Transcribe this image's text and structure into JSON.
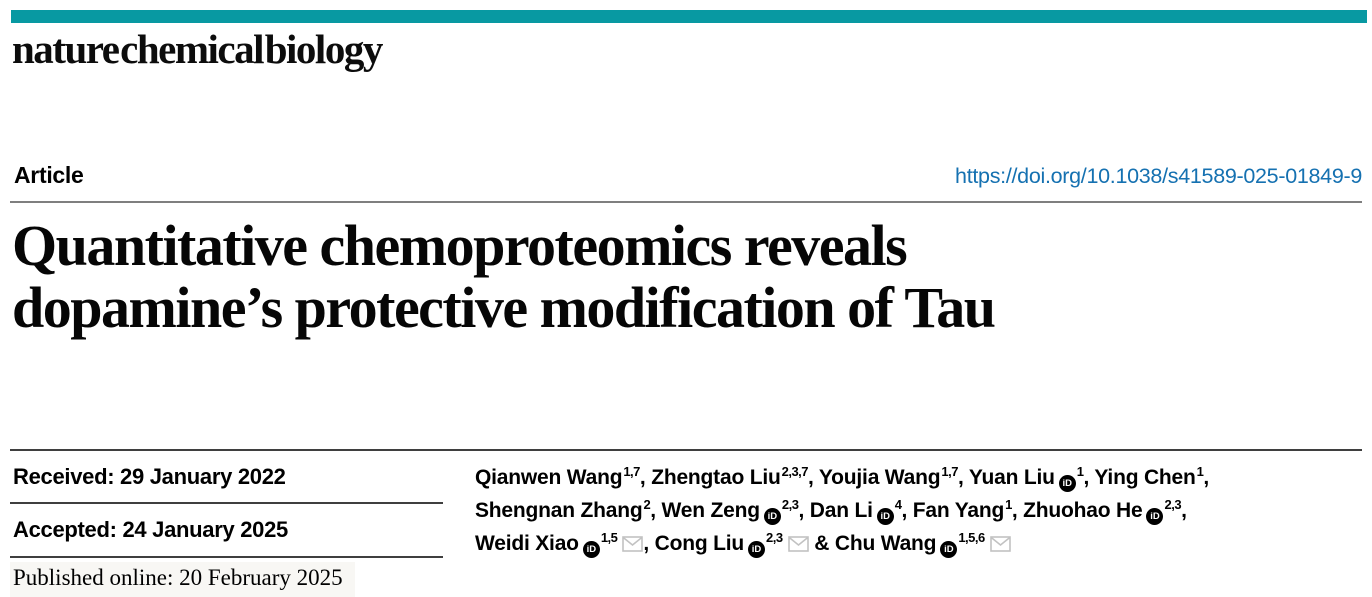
{
  "journal": {
    "wordmark": "nature chemical biology",
    "accent_color": "#0899a2"
  },
  "article": {
    "label": "Article",
    "doi": "https://doi.org/10.1038/s41589-025-01849-9",
    "link_color": "#1571b1"
  },
  "title": {
    "line1": "Quantitative chemoproteomics reveals",
    "line2": "dopamine’s protective modification of Tau"
  },
  "dates": {
    "received": "Received: 29 January 2022",
    "accepted": "Accepted: 24 January 2025",
    "published_online": "Published online: 20 February 2025"
  },
  "icons": {
    "orcid_glyph": "iD",
    "email_name": "envelope-icon"
  },
  "authors": {
    "lines": [
      [
        {
          "name": "Qianwen Wang",
          "sup": "1,7",
          "orcid": false,
          "email": false,
          "sep": ", "
        },
        {
          "name": "Zhengtao Liu",
          "sup": "2,3,7",
          "orcid": false,
          "email": false,
          "sep": ", "
        },
        {
          "name": "Youjia Wang",
          "sup": "1,7",
          "orcid": false,
          "email": false,
          "sep": ", "
        },
        {
          "name": "Yuan Liu",
          "sup": "1",
          "orcid": true,
          "email": false,
          "sep": ", "
        },
        {
          "name": "Ying Chen",
          "sup": "1",
          "orcid": false,
          "email": false,
          "sep": ","
        }
      ],
      [
        {
          "name": "Shengnan Zhang",
          "sup": "2",
          "orcid": false,
          "email": false,
          "sep": ", "
        },
        {
          "name": "Wen Zeng",
          "sup": "2,3",
          "orcid": true,
          "email": false,
          "sep": ", "
        },
        {
          "name": "Dan Li",
          "sup": "4",
          "orcid": true,
          "email": false,
          "sep": ", "
        },
        {
          "name": "Fan Yang",
          "sup": "1",
          "orcid": false,
          "email": false,
          "sep": ", "
        },
        {
          "name": "Zhuohao He",
          "sup": "2,3",
          "orcid": true,
          "email": false,
          "sep": ","
        }
      ],
      [
        {
          "name": "Weidi Xiao",
          "sup": "1,5",
          "orcid": true,
          "email": true,
          "sep": ", "
        },
        {
          "name": "Cong Liu",
          "sup": "2,3",
          "orcid": true,
          "email": true,
          "sep": " & "
        },
        {
          "name": "Chu Wang",
          "sup": "1,5,6",
          "orcid": true,
          "email": true,
          "sep": ""
        }
      ]
    ]
  }
}
